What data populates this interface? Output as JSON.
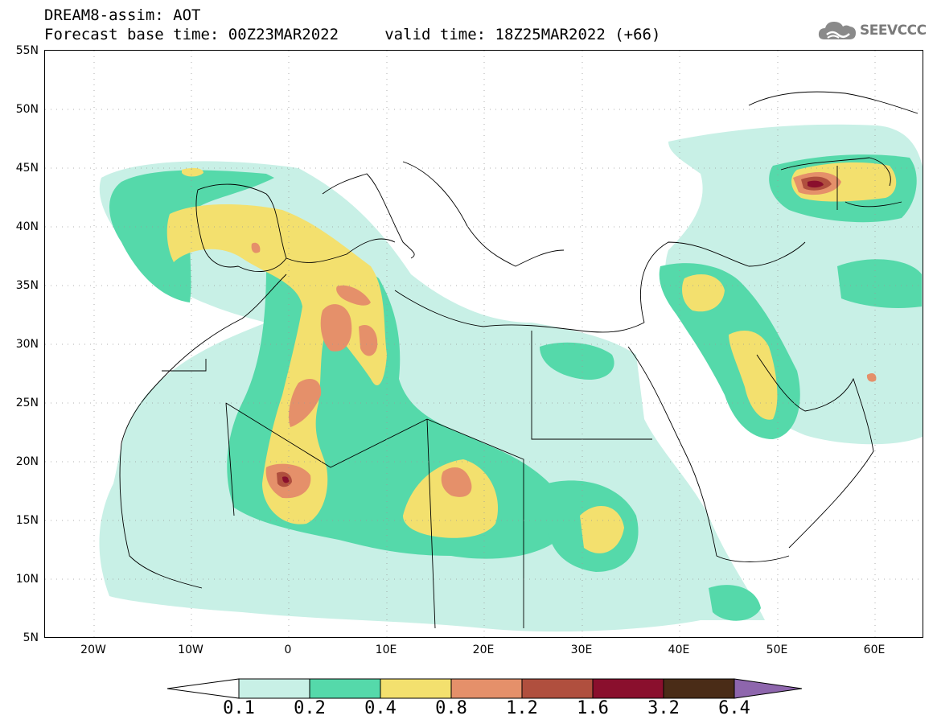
{
  "header": {
    "title_line1": "DREAM8-assim: AOT",
    "title_line2": "Forecast base time: 00Z23MAR2022     valid time: 18Z25MAR2022 (+66)"
  },
  "logo": {
    "text": "SEEVCCC",
    "icon": "cloud-logo-icon"
  },
  "map": {
    "variable": "AOT",
    "lon_range": [
      -25,
      65
    ],
    "lat_range": [
      5,
      55
    ],
    "lat_ticks": [
      "55N",
      "50N",
      "45N",
      "40N",
      "35N",
      "30N",
      "25N",
      "20N",
      "15N",
      "10N",
      "5N"
    ],
    "lon_ticks": [
      "20W",
      "10W",
      "0",
      "10E",
      "20E",
      "30E",
      "40E",
      "50E",
      "60E"
    ],
    "grid": "dotted",
    "colors": {
      "l1": "#c8f0e6",
      "l2": "#55d9aa",
      "l3": "#f3e06e",
      "l4": "#e5906a",
      "l5": "#b04f3e",
      "l6": "#8a0f2d"
    }
  },
  "colorbar": {
    "labels": [
      "0.1",
      "0.2",
      "0.4",
      "0.8",
      "1.2",
      "1.6",
      "3.2",
      "6.4"
    ],
    "colors": [
      "#ffffff",
      "#c8f0e6",
      "#55d9aa",
      "#f3e06e",
      "#e5906a",
      "#b04f3e",
      "#8a0f2d",
      "#4a2c17",
      "#8e66ad"
    ]
  }
}
